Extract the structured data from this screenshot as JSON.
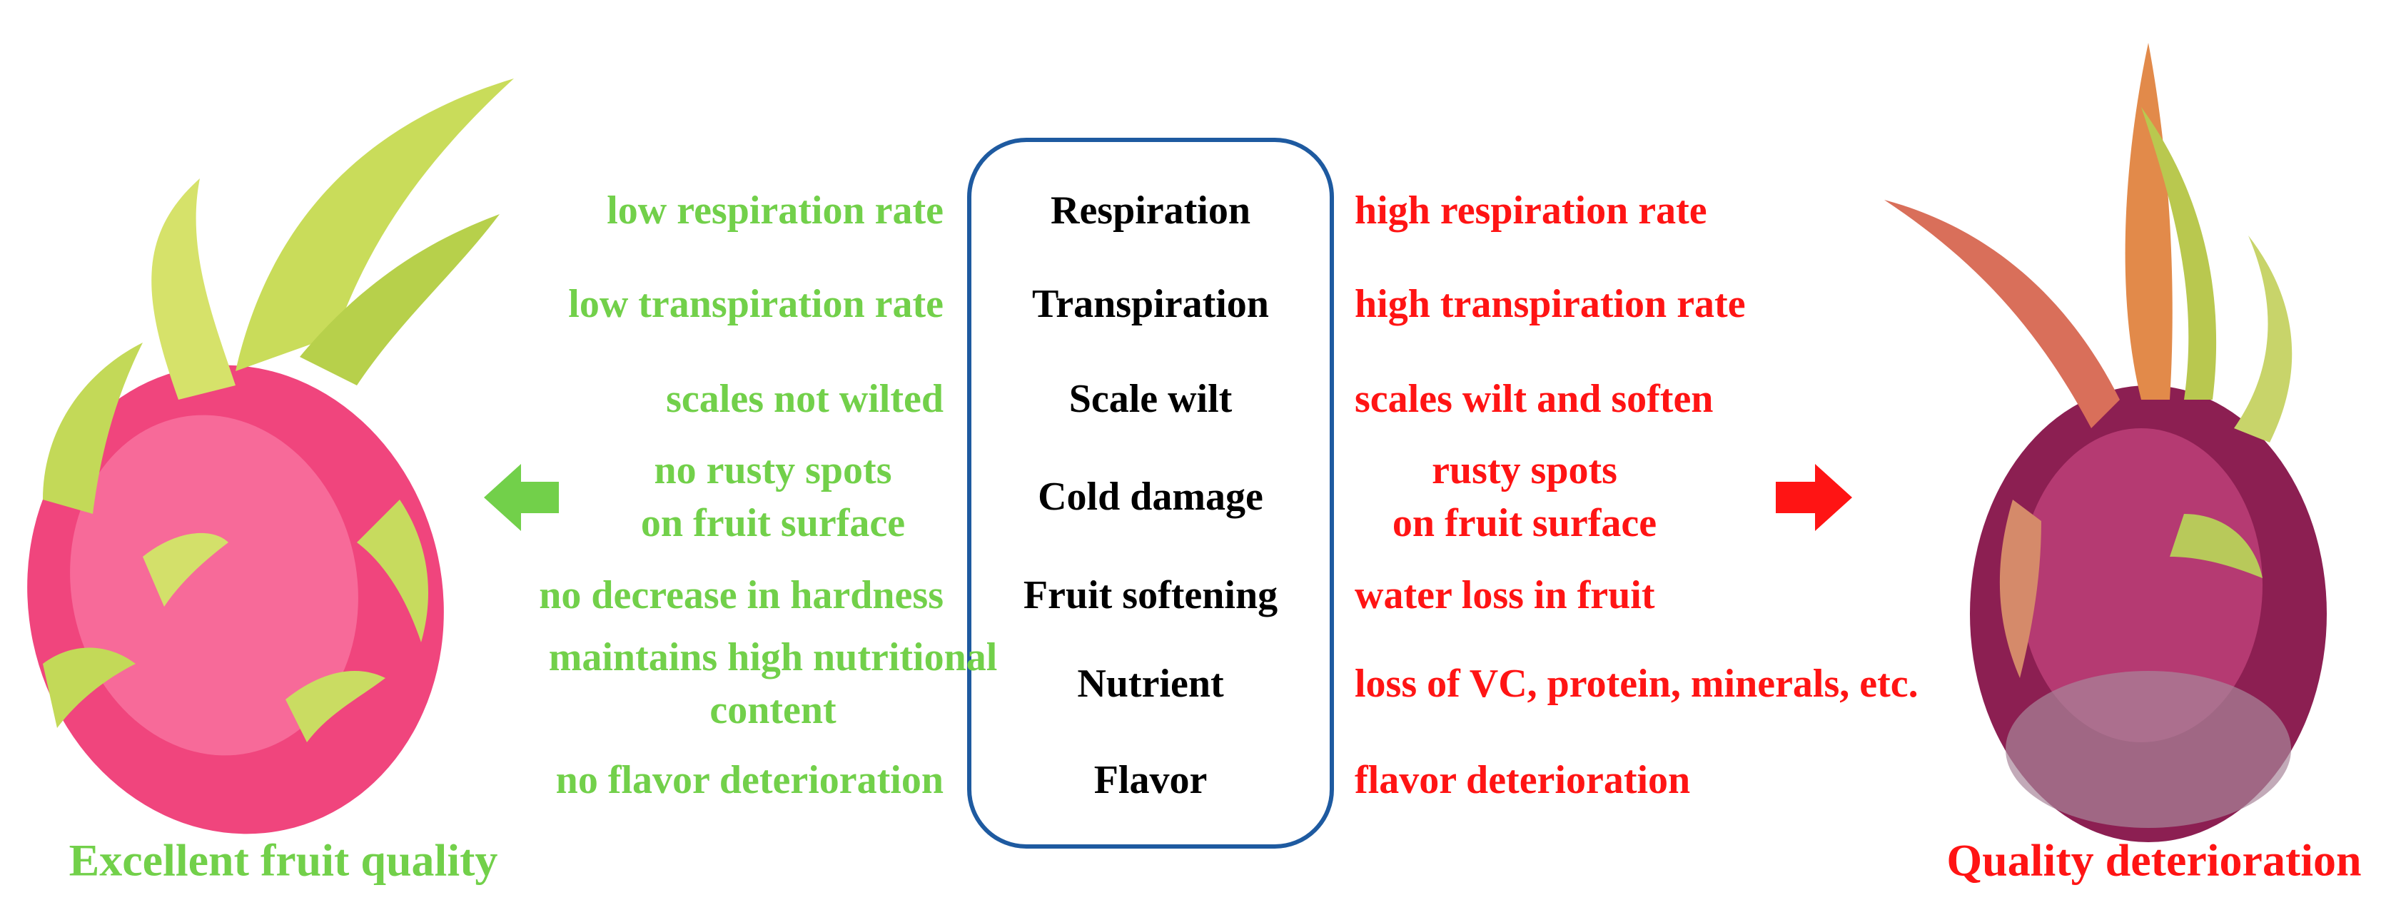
{
  "rows": [
    {
      "attribute": "Respiration",
      "good": [
        "low respiration rate"
      ],
      "bad": [
        "high respiration rate"
      ]
    },
    {
      "attribute": "Transpiration",
      "good": [
        "low transpiration rate"
      ],
      "bad": [
        "high transpiration rate"
      ]
    },
    {
      "attribute": "Scale wilt",
      "good": [
        "scales not wilted"
      ],
      "bad": [
        "scales wilt and soften"
      ]
    },
    {
      "attribute": "Cold damage",
      "good": [
        "no rusty spots",
        "on fruit surface"
      ],
      "bad": [
        "rusty spots",
        "on fruit surface"
      ]
    },
    {
      "attribute": "Fruit softening",
      "good": [
        "no decrease in hardness"
      ],
      "bad": [
        "water loss in fruit"
      ]
    },
    {
      "attribute": "Nutrient",
      "good": [
        "maintains high nutritional",
        "content"
      ],
      "bad": [
        "loss of VC, protein, minerals, etc."
      ]
    },
    {
      "attribute": "Flavor",
      "good": [
        "no flavor deterioration"
      ],
      "bad": [
        "flavor deterioration"
      ]
    }
  ],
  "good_caption": "Excellent fruit quality",
  "bad_caption": "Quality deterioration"
}
